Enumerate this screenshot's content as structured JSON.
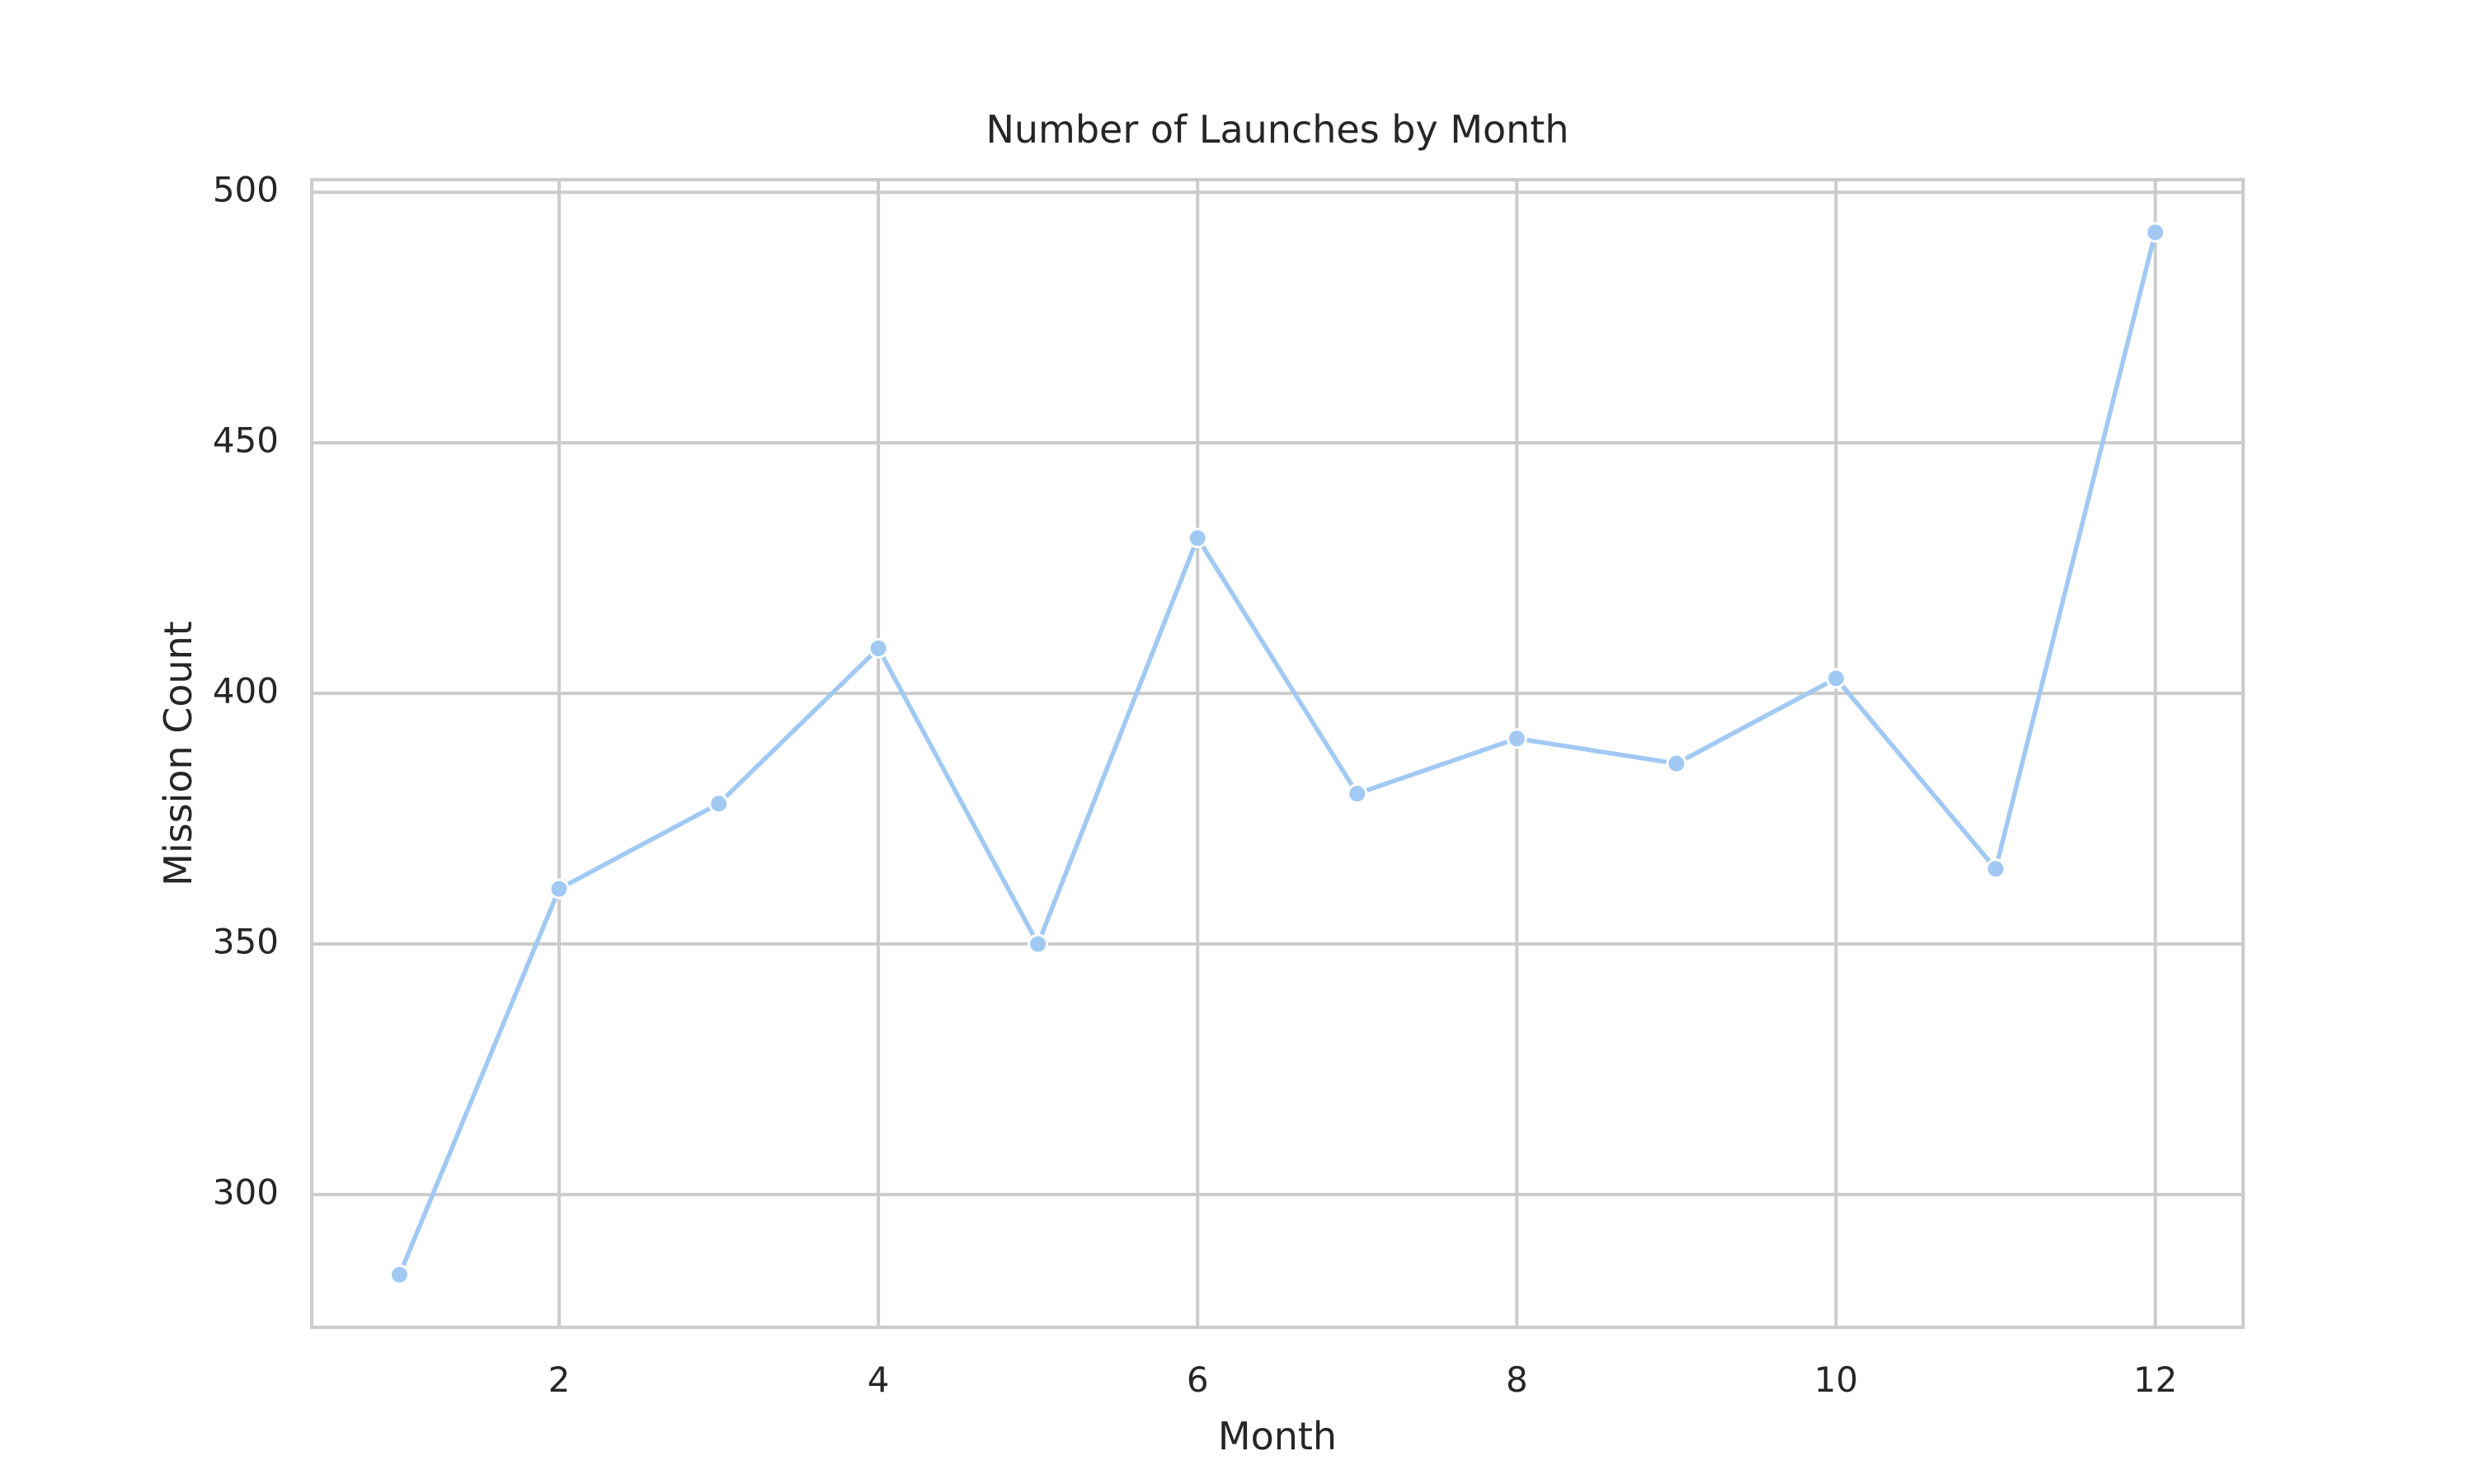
{
  "chart_data": {
    "type": "line",
    "title": "Number of Launches by Month",
    "xlabel": "Month",
    "ylabel": "Mission Count",
    "x": [
      1,
      2,
      3,
      4,
      5,
      6,
      7,
      8,
      9,
      10,
      11,
      12
    ],
    "series": [
      {
        "values": [
          284,
          361,
          378,
          409,
          350,
          431,
          380,
          391,
          386,
          403,
          365,
          492
        ],
        "color": "#a1c9f4",
        "marker": "circle"
      }
    ],
    "xlim": [
      0.45,
      12.55
    ],
    "ylim": [
      273.5,
      502.5
    ],
    "xticks": [
      2,
      4,
      6,
      8,
      10,
      12
    ],
    "yticks": [
      300,
      350,
      400,
      450,
      500
    ],
    "grid": true,
    "legend": "none",
    "colors": {
      "grid": "#cccccc",
      "spine": "#cccccc",
      "text": "#262626",
      "marker_edge": "#ffffff"
    }
  }
}
